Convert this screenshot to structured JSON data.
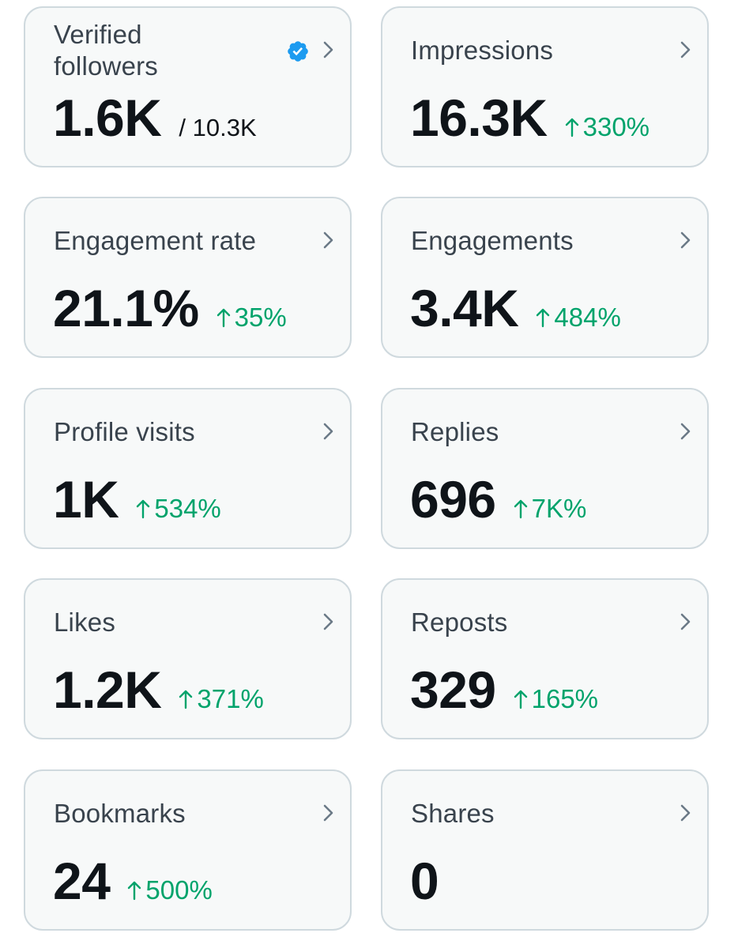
{
  "colors": {
    "card_bg": "#f7f9f9",
    "card_border": "#cfd9de",
    "value_text": "#0f1419",
    "label_text": "#39434d",
    "positive_delta": "#00a36b",
    "verified_badge": "#1d9bf0"
  },
  "cards": [
    {
      "label": "Verified followers",
      "value": "1.6K",
      "secondary": "/ 10.3K",
      "delta": "",
      "icon": "verified-badge-icon"
    },
    {
      "label": "Impressions",
      "value": "16.3K",
      "delta": "330%"
    },
    {
      "label": "Engagement rate",
      "value": "21.1%",
      "delta": "35%"
    },
    {
      "label": "Engagements",
      "value": "3.4K",
      "delta": "484%"
    },
    {
      "label": "Profile visits",
      "value": "1K",
      "delta": "534%"
    },
    {
      "label": "Replies",
      "value": "696",
      "delta": "7K%"
    },
    {
      "label": "Likes",
      "value": "1.2K",
      "delta": "371%"
    },
    {
      "label": "Reposts",
      "value": "329",
      "delta": "165%"
    },
    {
      "label": "Bookmarks",
      "value": "24",
      "delta": "500%"
    },
    {
      "label": "Shares",
      "value": "0",
      "delta": ""
    }
  ]
}
